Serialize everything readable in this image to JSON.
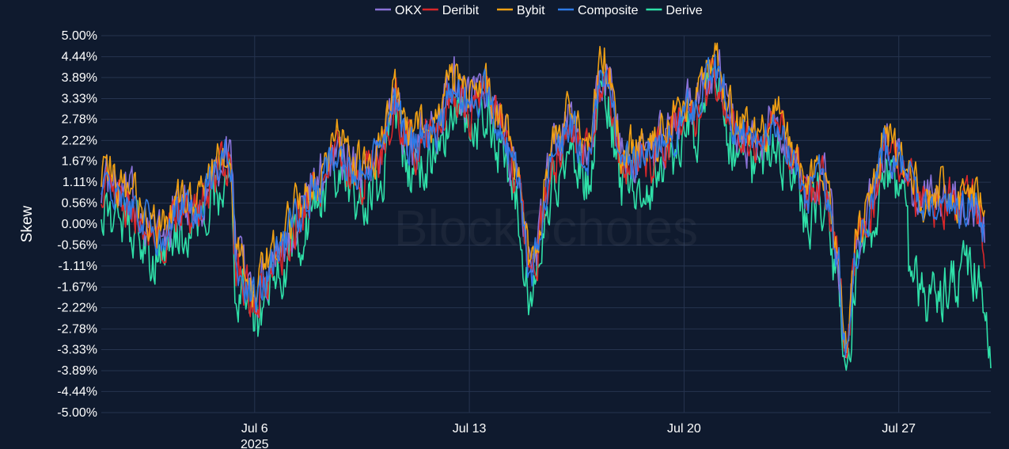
{
  "watermark": "BlockScholes",
  "chart_data": {
    "type": "line",
    "ylabel": "Skew",
    "xlabel": "",
    "y_ticks": [
      "5.00%",
      "4.44%",
      "3.89%",
      "3.33%",
      "2.78%",
      "2.22%",
      "1.67%",
      "1.11%",
      "0.56%",
      "0.00%",
      "-0.56%",
      "-1.11%",
      "-1.67%",
      "-2.22%",
      "-2.78%",
      "-3.33%",
      "-3.89%",
      "-4.44%",
      "-5.00%"
    ],
    "ylim": [
      -5.0,
      5.0
    ],
    "xlim": [
      "2025-07-01",
      "2025-07-30"
    ],
    "x_ticks": [
      {
        "date": "2025-07-06",
        "label": "Jul 6",
        "sublabel": "2025"
      },
      {
        "date": "2025-07-13",
        "label": "Jul 13"
      },
      {
        "date": "2025-07-20",
        "label": "Jul 20"
      },
      {
        "date": "2025-07-27",
        "label": "Jul 27"
      }
    ],
    "grid": true,
    "legend_position": "top-center",
    "series": [
      {
        "name": "OKX",
        "color": "#8a72d8",
        "offset": 0.15,
        "amp": 0.55,
        "dates": [
          "2025-07-01",
          "2025-07-29.8"
        ]
      },
      {
        "name": "Deribit",
        "color": "#d9272a",
        "offset": 0.0,
        "amp": 0.5,
        "dates": [
          "2025-07-01",
          "2025-07-29.8"
        ]
      },
      {
        "name": "Bybit",
        "color": "#f0a014",
        "offset": 0.35,
        "amp": 0.45,
        "dates": [
          "2025-07-01",
          "2025-07-29.8"
        ]
      },
      {
        "name": "Composite",
        "color": "#2f7be6",
        "offset": 0.05,
        "amp": 0.4,
        "dates": [
          "2025-07-01",
          "2025-07-29.8"
        ]
      },
      {
        "name": "Derive",
        "color": "#2fe0a8",
        "offset": -0.55,
        "amp": 0.6,
        "dates": [
          "2025-07-01",
          "2025-07-30"
        ]
      }
    ],
    "base_path": [
      [
        "2025-07-01",
        1.0
      ],
      [
        "2025-07-02",
        0.4
      ],
      [
        "2025-07-03",
        -0.5
      ],
      [
        "2025-07-03.5",
        0.3
      ],
      [
        "2025-07-04",
        0.2
      ],
      [
        "2025-07-04.8",
        1.4
      ],
      [
        "2025-07-05.2",
        1.7
      ],
      [
        "2025-07-05.4",
        -1.2
      ],
      [
        "2025-07-06",
        -2.0
      ],
      [
        "2025-07-06.8",
        -0.7
      ],
      [
        "2025-07-07.5",
        0.2
      ],
      [
        "2025-07-08",
        0.9
      ],
      [
        "2025-07-08.6",
        1.9
      ],
      [
        "2025-07-09.4",
        1.3
      ],
      [
        "2025-07-10",
        1.6
      ],
      [
        "2025-07-10.6",
        3.2
      ],
      [
        "2025-07-11",
        2.0
      ],
      [
        "2025-07-12",
        2.5
      ],
      [
        "2025-07-12.5",
        3.6
      ],
      [
        "2025-07-13",
        3.1
      ],
      [
        "2025-07-13.5",
        3.4
      ],
      [
        "2025-07-14",
        2.5
      ],
      [
        "2025-07-14.5",
        1.2
      ],
      [
        "2025-07-15",
        -1.3
      ],
      [
        "2025-07-15.8",
        1.8
      ],
      [
        "2025-07-16.3",
        2.6
      ],
      [
        "2025-07-16.8",
        1.7
      ],
      [
        "2025-07-17.4",
        4.0
      ],
      [
        "2025-07-18",
        1.6
      ],
      [
        "2025-07-19",
        1.8
      ],
      [
        "2025-07-19.5",
        2.3
      ],
      [
        "2025-07-20.3",
        3.0
      ],
      [
        "2025-07-21",
        4.0
      ],
      [
        "2025-07-21.7",
        2.4
      ],
      [
        "2025-07-22.3",
        2.1
      ],
      [
        "2025-07-23",
        2.5
      ],
      [
        "2025-07-23.6",
        1.5
      ],
      [
        "2025-07-24",
        0.7
      ],
      [
        "2025-07-24.5",
        1.2
      ],
      [
        "2025-07-25",
        -0.9
      ],
      [
        "2025-07-25.3",
        -3.6
      ],
      [
        "2025-07-25.6",
        -0.8
      ],
      [
        "2025-07-26",
        0.3
      ],
      [
        "2025-07-26.6",
        2.0
      ],
      [
        "2025-07-27.2",
        1.4
      ],
      [
        "2025-07-27.8",
        0.3
      ],
      [
        "2025-07-28.5",
        0.6
      ],
      [
        "2025-07-29",
        0.4
      ],
      [
        "2025-07-29.5",
        0.5
      ],
      [
        "2025-07-30",
        -0.9
      ]
    ]
  }
}
